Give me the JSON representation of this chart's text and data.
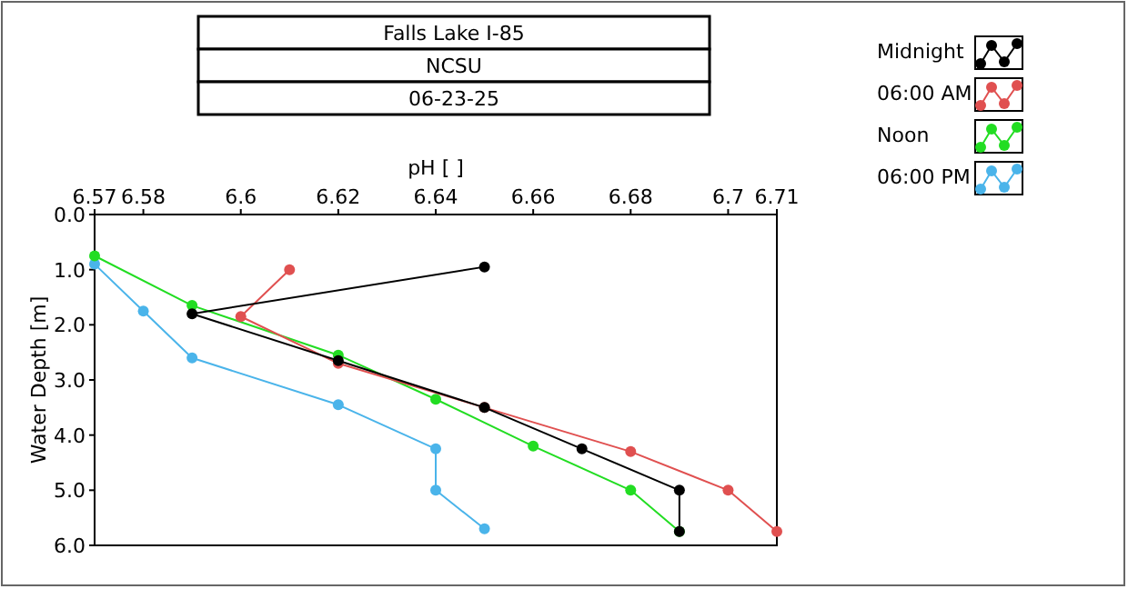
{
  "chart_data": {
    "type": "line",
    "title": "Falls Lake I-85",
    "subtitle": "NCSU",
    "annotations": [
      "06-23-25"
    ],
    "xlabel": "pH [ ]",
    "ylabel": "Water Depth [m]",
    "xlim": [
      6.57,
      6.71
    ],
    "xticks": [
      6.57,
      6.58,
      6.6,
      6.62,
      6.64,
      6.66,
      6.68,
      6.7,
      6.71
    ],
    "ylim": [
      6,
      0
    ],
    "yticks": [
      {
        "value": 0,
        "label": "0.0"
      },
      {
        "value": 1,
        "label": "1.0"
      },
      {
        "value": 2,
        "label": "2.0"
      },
      {
        "value": 3,
        "label": "3.0"
      },
      {
        "value": 4,
        "label": "4.0"
      },
      {
        "value": 5,
        "label": "5.0"
      },
      {
        "value": 6,
        "label": "6.0"
      }
    ],
    "grid": false,
    "legend": "top right",
    "marker": "circle",
    "line_style": "solid",
    "series": [
      {
        "name": "Midnight",
        "color": "#000000",
        "x": [
          6.65,
          6.59,
          6.62,
          6.65,
          6.67,
          6.69,
          6.69
        ],
        "values": [
          0.95,
          1.8,
          2.65,
          3.5,
          4.25,
          5.0,
          5.75
        ]
      },
      {
        "name": "06:00 AM",
        "color": "#e05050",
        "x": [
          6.61,
          6.6,
          6.62,
          6.65,
          6.68,
          6.7,
          6.71
        ],
        "values": [
          1.0,
          1.85,
          2.7,
          3.5,
          4.3,
          5.0,
          5.75
        ]
      },
      {
        "name": "Noon",
        "color": "#22dd22",
        "x": [
          6.57,
          6.59,
          6.62,
          6.64,
          6.66,
          6.68,
          6.69
        ],
        "values": [
          0.75,
          1.65,
          2.55,
          3.35,
          4.2,
          5.0,
          5.75
        ]
      },
      {
        "name": "06:00 PM",
        "color": "#4ab4ea",
        "x": [
          6.57,
          6.58,
          6.59,
          6.62,
          6.64,
          6.64,
          6.65
        ],
        "values": [
          0.9,
          1.75,
          2.6,
          3.45,
          4.25,
          5.0,
          5.7
        ]
      }
    ]
  }
}
